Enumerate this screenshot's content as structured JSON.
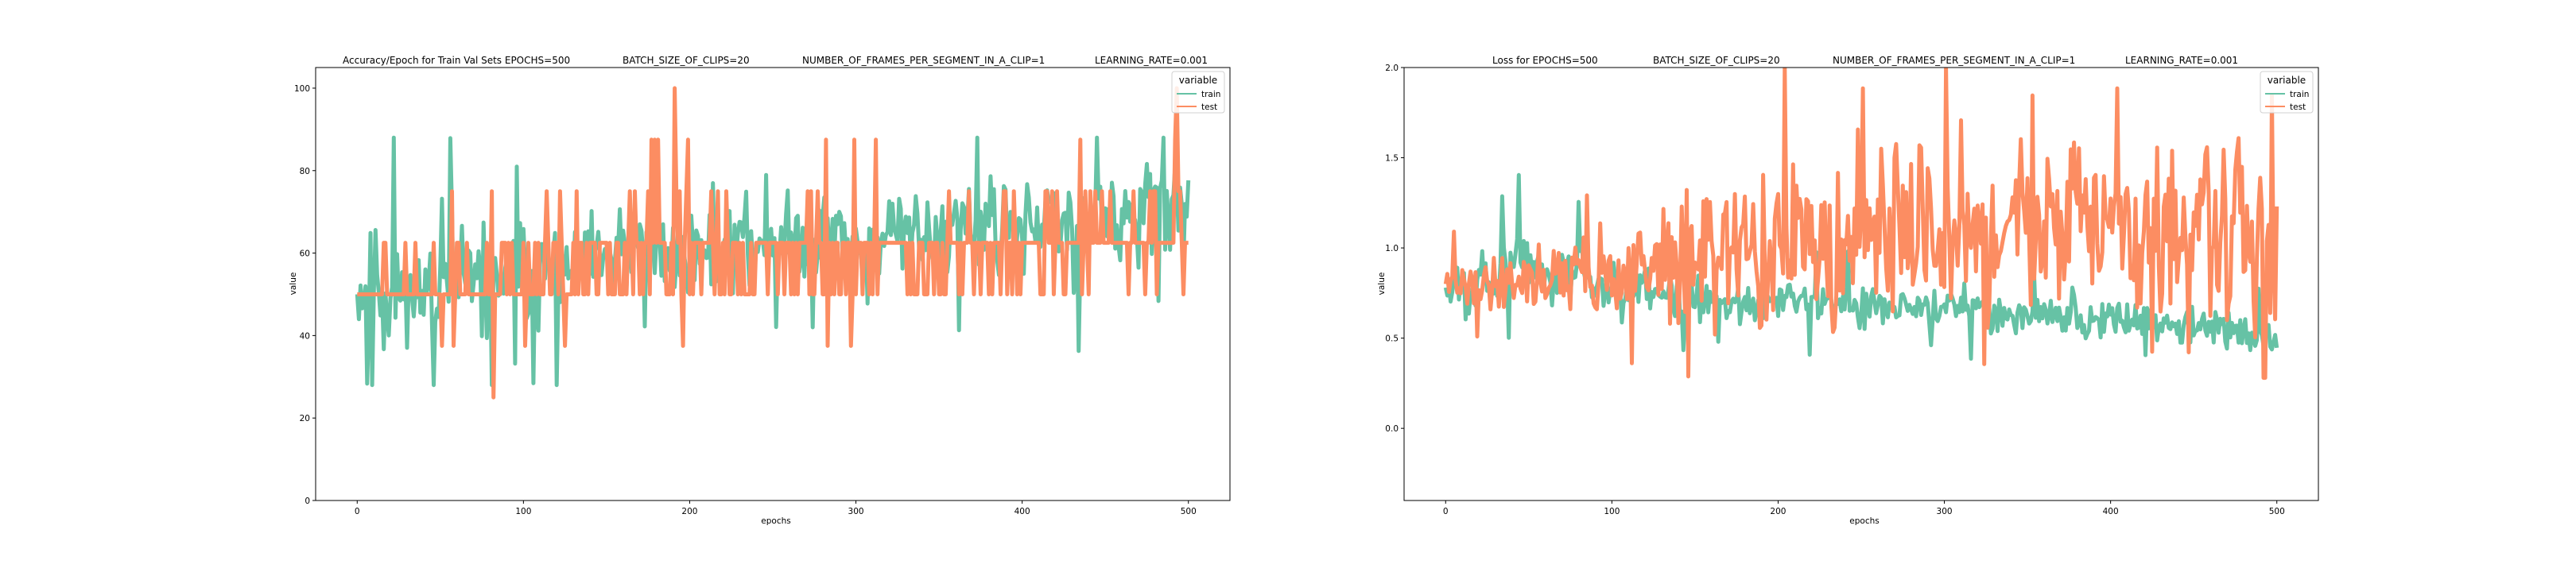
{
  "colors": {
    "train": "#66c2a5",
    "test": "#fc8d62",
    "frame": "#000000",
    "legend_bg": "#ffffff"
  },
  "chart_data": [
    {
      "type": "line",
      "title_parts": [
        "Accuracy/Epoch for Train Val Sets EPOCHS=500",
        "BATCH_SIZE_OF_CLIPS=20",
        "NUMBER_OF_FRAMES_PER_SEGMENT_IN_A_CLIP=1",
        "LEARNING_RATE=0.001"
      ],
      "xlabel": "epochs",
      "ylabel": "value",
      "xlim": [
        -25,
        525
      ],
      "ylim": [
        0,
        105
      ],
      "xticks": [
        0,
        100,
        200,
        300,
        400,
        500
      ],
      "yticks": [
        0,
        20,
        40,
        60,
        80,
        100
      ],
      "legend": {
        "title": "variable",
        "position": "top-right",
        "entries": [
          "train",
          "test"
        ]
      },
      "grid": false,
      "series": [
        {
          "name": "train",
          "profile": {
            "epochs": 500,
            "start": 50,
            "anchors": [
              [
                0,
                50
              ],
              [
                10,
                53
              ],
              [
                40,
                51
              ],
              [
                80,
                53
              ],
              [
                120,
                56
              ],
              [
                125,
                55
              ],
              [
                160,
                60
              ],
              [
                200,
                60
              ],
              [
                250,
                63
              ],
              [
                300,
                63
              ],
              [
                350,
                65
              ],
              [
                400,
                67
              ],
              [
                450,
                68
              ],
              [
                500,
                72
              ]
            ],
            "spread": [
              [
                0,
                9
              ],
              [
                10,
                13
              ],
              [
                120,
                12
              ],
              [
                130,
                9
              ],
              [
                500,
                11
              ]
            ],
            "min": 28,
            "max": 88,
            "seed": 11
          }
        },
        {
          "name": "test",
          "profile": {
            "epochs": 500,
            "start": 50,
            "levels": [
              25,
              37.5,
              50,
              62.5,
              75,
              87.5,
              100
            ],
            "anchors": [
              [
                0,
                50
              ],
              [
                20,
                51
              ],
              [
                60,
                53
              ],
              [
                120,
                55
              ],
              [
                200,
                59
              ],
              [
                300,
                60
              ],
              [
                400,
                61
              ],
              [
                500,
                63
              ]
            ],
            "spread": [
              [
                0,
                5
              ],
              [
                60,
                9
              ],
              [
                120,
                10
              ],
              [
                200,
                12
              ],
              [
                500,
                12
              ]
            ],
            "min": 25,
            "max": 100,
            "seed": 23
          }
        }
      ]
    },
    {
      "type": "line",
      "title_parts": [
        "Loss for  EPOCHS=500",
        "BATCH_SIZE_OF_CLIPS=20",
        "NUMBER_OF_FRAMES_PER_SEGMENT_IN_A_CLIP=1",
        "LEARNING_RATE=0.001"
      ],
      "xlabel": "epochs",
      "ylabel": "value",
      "xlim": [
        -25,
        525
      ],
      "ylim": [
        -0.4,
        2.0
      ],
      "xticks": [
        0,
        100,
        200,
        300,
        400,
        500
      ],
      "yticks": [
        0.0,
        0.5,
        1.0,
        1.5,
        2.0
      ],
      "legend": {
        "title": "variable",
        "position": "top-right",
        "entries": [
          "train",
          "test"
        ]
      },
      "grid": false,
      "series": [
        {
          "name": "train",
          "profile": {
            "epochs": 500,
            "start": 0.78,
            "anchors": [
              [
                0,
                0.78
              ],
              [
                30,
                0.85
              ],
              [
                40,
                1.0
              ],
              [
                60,
                0.85
              ],
              [
                100,
                0.78
              ],
              [
                150,
                0.72
              ],
              [
                200,
                0.7
              ],
              [
                250,
                0.68
              ],
              [
                300,
                0.66
              ],
              [
                350,
                0.63
              ],
              [
                400,
                0.6
              ],
              [
                450,
                0.56
              ],
              [
                500,
                0.5
              ]
            ],
            "spread": [
              [
                0,
                0.15
              ],
              [
                40,
                0.2
              ],
              [
                100,
                0.12
              ],
              [
                500,
                0.1
              ]
            ],
            "min": 0.38,
            "max": 1.5,
            "seed": 5
          }
        },
        {
          "name": "test",
          "profile": {
            "epochs": 500,
            "start": 0.8,
            "anchors": [
              [
                0,
                0.8
              ],
              [
                30,
                0.8
              ],
              [
                50,
                0.85
              ],
              [
                100,
                0.85
              ],
              [
                150,
                0.95
              ],
              [
                200,
                1.0
              ],
              [
                250,
                1.05
              ],
              [
                300,
                1.1
              ],
              [
                350,
                1.15
              ],
              [
                400,
                1.1
              ],
              [
                450,
                1.05
              ],
              [
                500,
                1.0
              ]
            ],
            "spread": [
              [
                0,
                0.08
              ],
              [
                80,
                0.2
              ],
              [
                150,
                0.35
              ],
              [
                250,
                0.45
              ],
              [
                500,
                0.45
              ]
            ],
            "min": 0.28,
            "max": 2.0,
            "seed": 41
          }
        }
      ]
    }
  ]
}
